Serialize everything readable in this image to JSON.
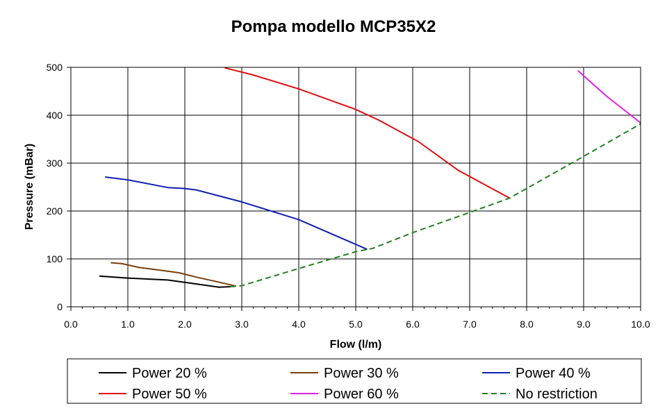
{
  "chart_data": {
    "type": "line",
    "title": "Pompa modello MCP35X2",
    "xlabel": "Flow (l/m)",
    "ylabel": "Pressure (mBar)",
    "xlim": [
      0,
      10
    ],
    "ylim": [
      0,
      500
    ],
    "x_ticks": [
      "0.0",
      "1.0",
      "2.0",
      "3.0",
      "4.0",
      "5.0",
      "6.0",
      "7.0",
      "8.0",
      "9.0",
      "10.0"
    ],
    "y_ticks": [
      "0",
      "100",
      "200",
      "300",
      "400",
      "500"
    ],
    "grid": true,
    "legend_position": "bottom",
    "series": [
      {
        "name": "Power 20 %",
        "color": "#000000",
        "dashed": false,
        "points": [
          [
            0.5,
            64
          ],
          [
            1.0,
            60
          ],
          [
            1.7,
            56
          ],
          [
            2.0,
            51
          ],
          [
            2.3,
            46
          ],
          [
            2.6,
            41
          ],
          [
            2.8,
            42
          ]
        ]
      },
      {
        "name": "Power 30 %",
        "color": "#7a3d0a",
        "dashed": false,
        "points": [
          [
            0.7,
            92
          ],
          [
            0.9,
            90
          ],
          [
            1.2,
            82
          ],
          [
            1.6,
            76
          ],
          [
            1.9,
            71
          ],
          [
            2.2,
            62
          ],
          [
            2.5,
            54
          ],
          [
            2.8,
            46
          ],
          [
            2.9,
            43
          ]
        ]
      },
      {
        "name": "Power 40 %",
        "color": "#1020b0",
        "dashed": false,
        "points": [
          [
            0.6,
            271
          ],
          [
            1.0,
            265
          ],
          [
            1.7,
            249
          ],
          [
            2.0,
            247
          ],
          [
            2.2,
            244
          ],
          [
            3.0,
            219
          ],
          [
            4.0,
            182
          ],
          [
            5.2,
            120
          ]
        ]
      },
      {
        "name": "Power 50 %",
        "color": "#dd1010",
        "dashed": false,
        "points": [
          [
            2.7,
            499
          ],
          [
            3.2,
            484
          ],
          [
            4.0,
            455
          ],
          [
            5.0,
            412
          ],
          [
            5.4,
            390
          ],
          [
            6.1,
            345
          ],
          [
            6.8,
            285
          ],
          [
            7.7,
            227
          ]
        ]
      },
      {
        "name": "Power 60 %",
        "color": "#e020e0",
        "dashed": false,
        "points": [
          [
            8.9,
            493
          ],
          [
            9.4,
            440
          ],
          [
            10.0,
            384
          ]
        ]
      },
      {
        "name": "No restriction",
        "color": "#228022",
        "dashed": true,
        "points": [
          [
            2.8,
            42
          ],
          [
            3.0,
            44
          ],
          [
            3.5,
            62
          ],
          [
            4.0,
            80
          ],
          [
            5.0,
            115
          ],
          [
            5.3,
            122
          ],
          [
            6.0,
            155
          ],
          [
            7.0,
            197
          ],
          [
            7.7,
            227
          ],
          [
            9.0,
            314
          ],
          [
            10.0,
            382
          ]
        ]
      }
    ]
  }
}
